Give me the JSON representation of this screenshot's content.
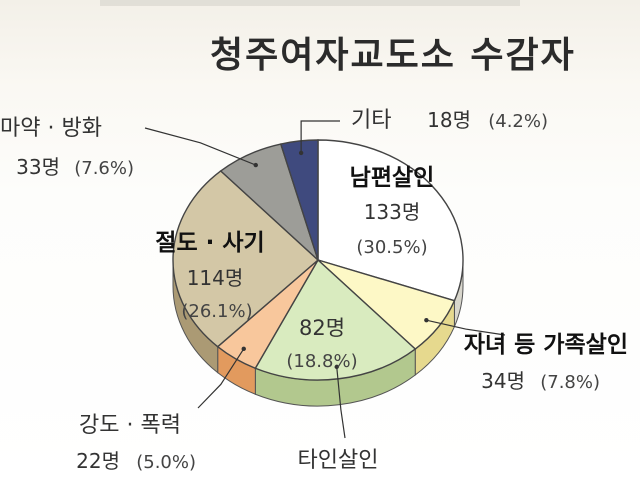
{
  "chart_data": {
    "type": "pie",
    "title": "청주여자교도소 수감자",
    "unit": "명",
    "categories": [
      "남편살인",
      "자녀 등 가족살인",
      "타인살인",
      "강도 · 폭력",
      "절도 · 사기",
      "마약 · 방화",
      "기타"
    ],
    "values": [
      133,
      34,
      82,
      22,
      114,
      33,
      18
    ],
    "percents": [
      30.5,
      7.8,
      18.8,
      5.0,
      26.1,
      7.6,
      4.2
    ],
    "value_labels": [
      "133명",
      "34명",
      "82명",
      "22명",
      "114명",
      "33명",
      "18명"
    ],
    "percent_labels": [
      "(30.5%)",
      "(7.8%)",
      "(18.8%)",
      "(5.0%)",
      "(26.1%)",
      "(7.6%)",
      "(4.2%)"
    ],
    "colors": [
      "#ffffff",
      "#fdf8c6",
      "#d9ebbf",
      "#f8c79c",
      "#d3c7a6",
      "#9d9d98",
      "#3f4a7e"
    ],
    "side_colors": [
      "#d8d6cc",
      "#e6d98e",
      "#b2c88e",
      "#e29a5e",
      "#ab9a74",
      "#6f6f6a",
      "#2a3159"
    ],
    "legend": "none"
  }
}
